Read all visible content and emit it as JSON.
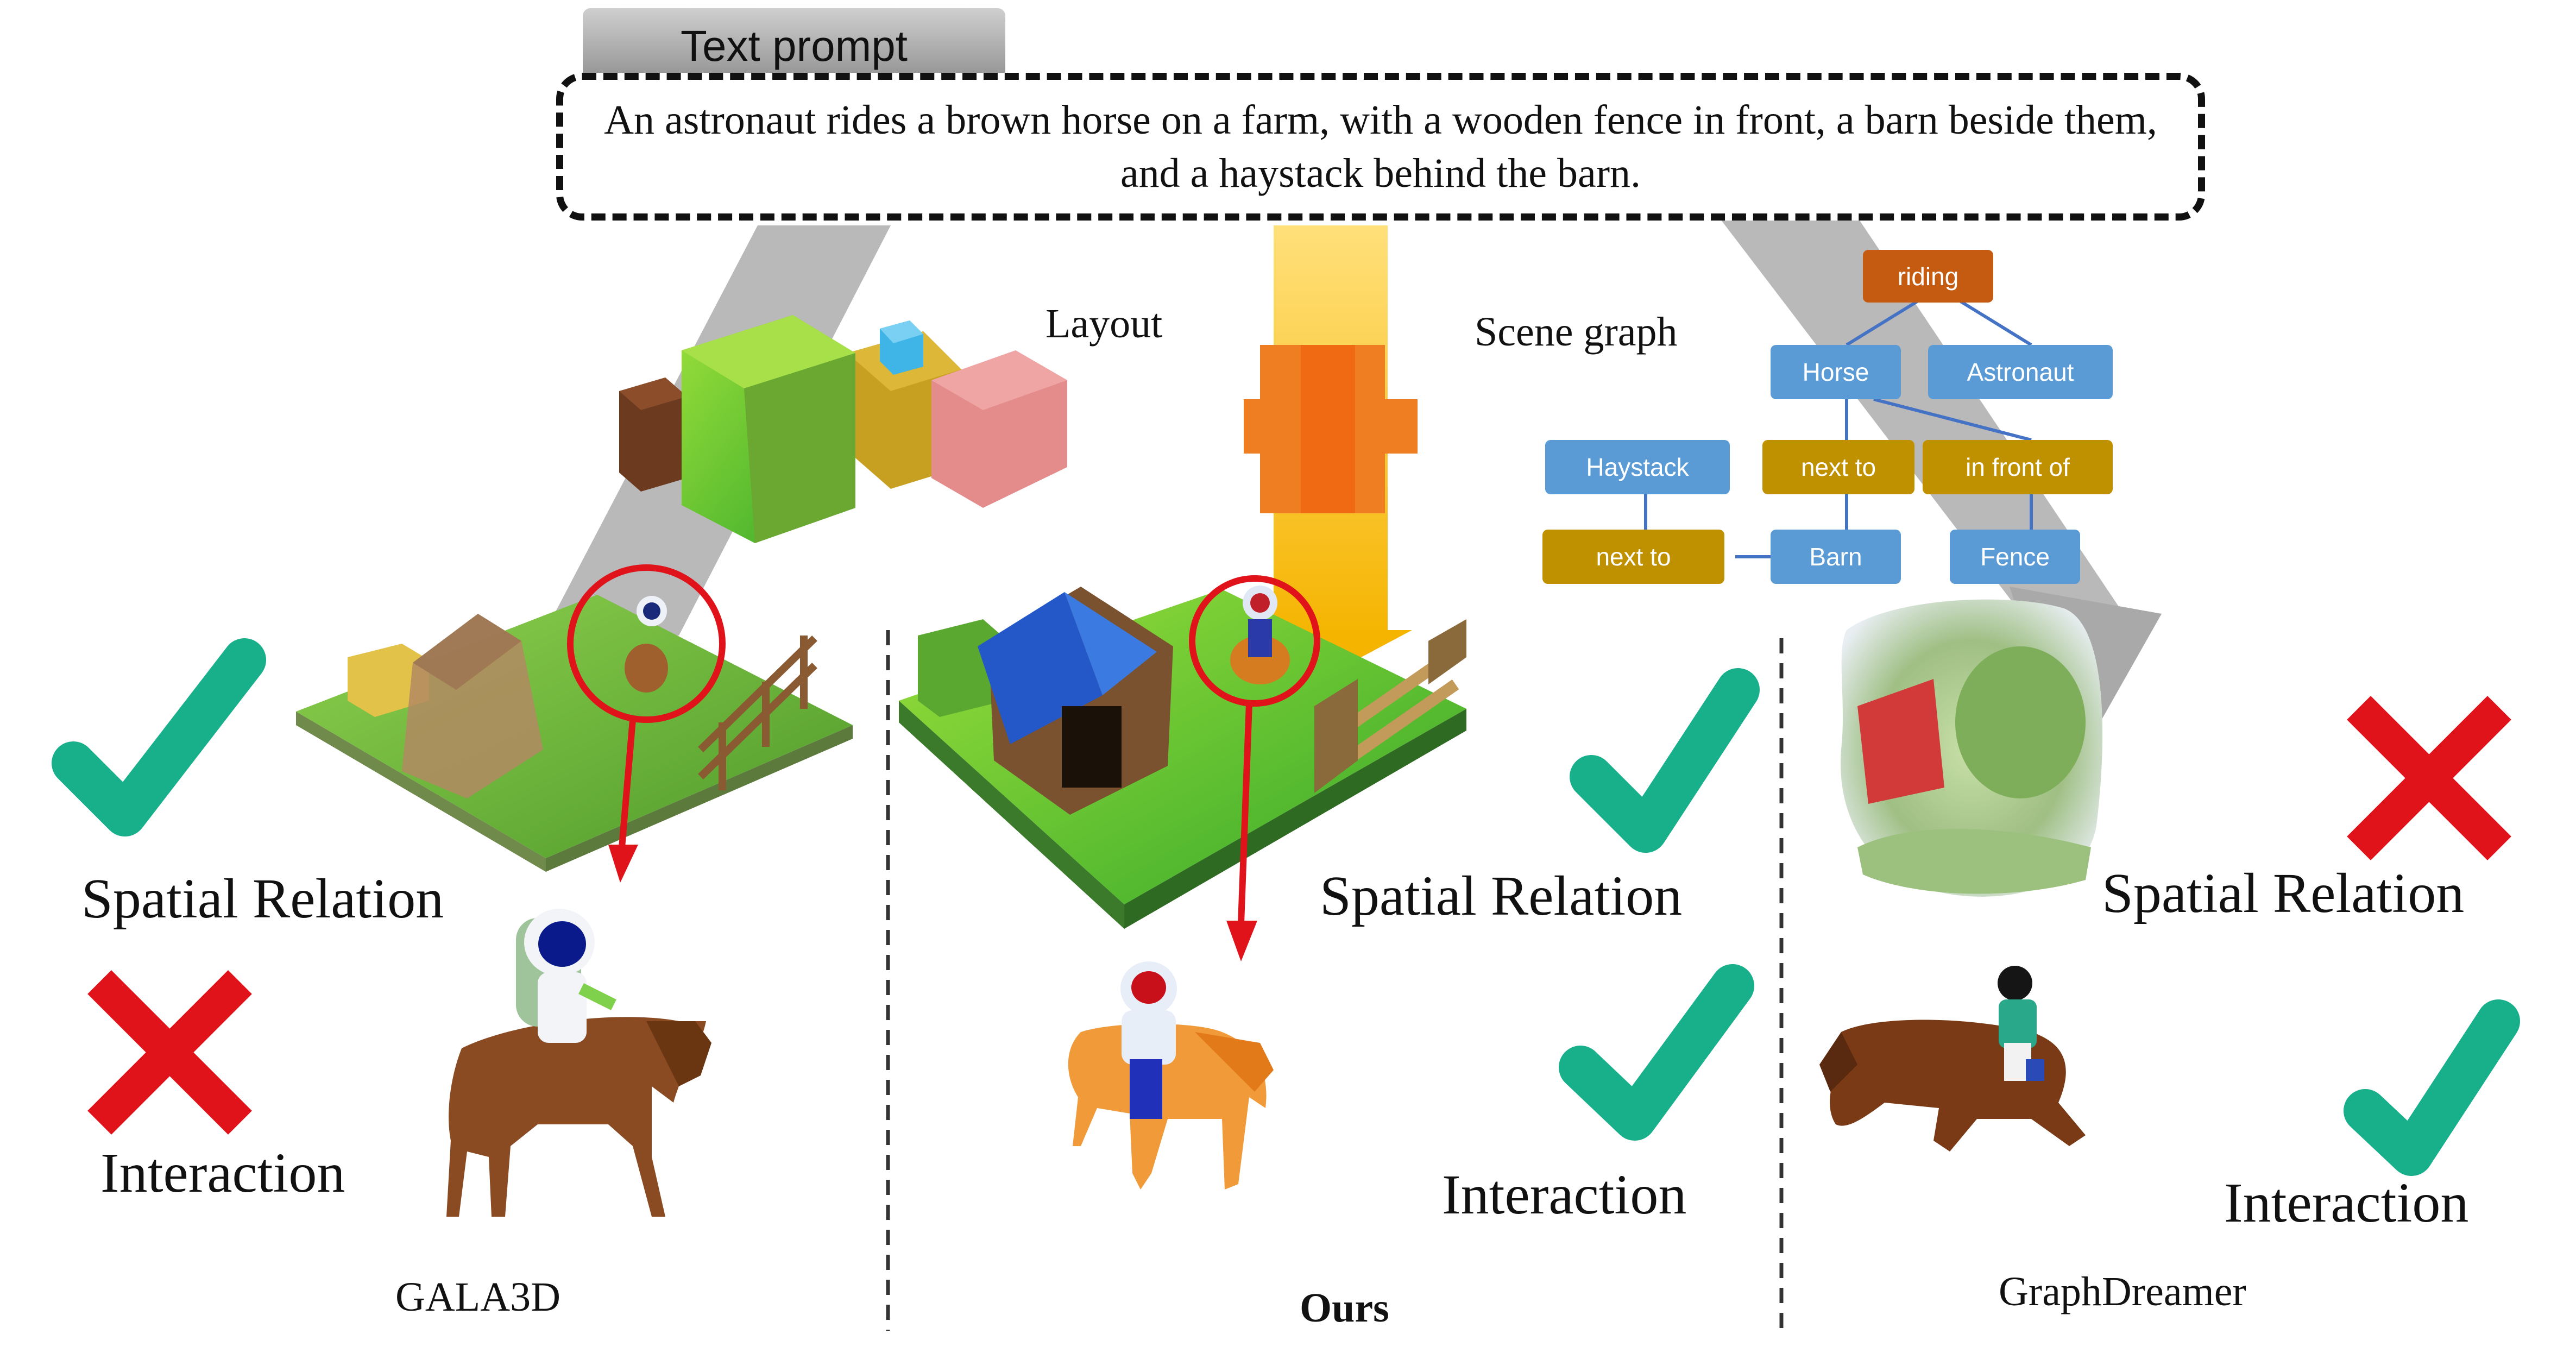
{
  "prompt": {
    "tab_label": "Text prompt",
    "text": "An astronaut rides a brown horse on a farm, with a wooden fence in front, a barn beside them, and a haystack behind the barn."
  },
  "conditions": {
    "layout_label": "Layout",
    "scene_graph_label": "Scene graph"
  },
  "scene_graph": {
    "riding": "riding",
    "horse": "Horse",
    "astronaut": "Astronaut",
    "haystack": "Haystack",
    "next_to_1": "next to",
    "in_front_of": "in front of",
    "next_to_2": "next to",
    "barn": "Barn",
    "fence": "Fence"
  },
  "methods": [
    {
      "name": "GALA3D",
      "spatial_label": "Spatial Relation",
      "spatial_ok": true,
      "interaction_label": "Interaction",
      "interaction_ok": false
    },
    {
      "name": "Ours",
      "spatial_label": "Spatial Relation",
      "spatial_ok": true,
      "interaction_label": "Interaction",
      "interaction_ok": true
    },
    {
      "name": "GraphDreamer",
      "spatial_label": "Spatial Relation",
      "spatial_ok": false,
      "interaction_label": "Interaction",
      "interaction_ok": true
    }
  ],
  "colors": {
    "check": "#17b08a",
    "cross": "#e0121a",
    "node_blue": "#5b9bd5",
    "node_gold": "#bf9000",
    "node_orange": "#c55a11",
    "highlight": "#e0121a"
  }
}
